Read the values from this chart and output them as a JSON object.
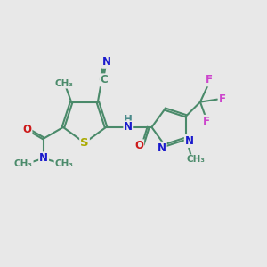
{
  "background_color": "#e8e8e8",
  "atom_colors": {
    "C": "#4a8a6a",
    "N": "#1a1acc",
    "O": "#cc1a1a",
    "S": "#aaaa00",
    "H": "#4a8a8a",
    "F": "#cc44cc",
    "bond": "#4a8a6a"
  },
  "bond_width": 1.5,
  "font_size": 8.5,
  "figsize": [
    3.0,
    3.0
  ],
  "dpi": 100,
  "xlim": [
    0,
    10
  ],
  "ylim": [
    0,
    10
  ]
}
